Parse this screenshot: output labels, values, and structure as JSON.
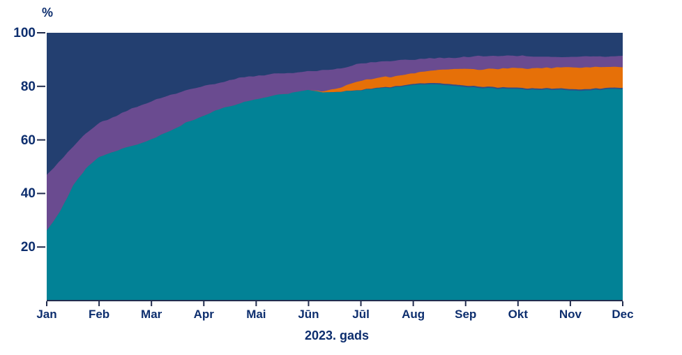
{
  "axes": {
    "y_unit": "%",
    "x_title": "2023. gads",
    "y_ticks": [
      20,
      40,
      60,
      80,
      100
    ],
    "x_ticks": [
      "Jan",
      "Feb",
      "Mar",
      "Apr",
      "Mai",
      "Jūn",
      "Jūl",
      "Aug",
      "Sep",
      "Okt",
      "Nov",
      "Dec"
    ],
    "y_min": 0,
    "y_max": 100
  },
  "colors": {
    "background": "#FFFFFF",
    "navy_area": "#233F70",
    "purple_area": "#6A4B90",
    "orange_area": "#E67008",
    "dark_blue_thin_area": "#2F4E86",
    "teal_area": "#028296",
    "axis_line": "#232D4E",
    "label_text": "#0D2E6E"
  },
  "chart_data": {
    "type": "area",
    "stacked": true,
    "unit": "%",
    "title": "",
    "xlabel": "2023. gads",
    "ylabel": "%",
    "ylim": [
      0,
      100
    ],
    "legend_position": "none",
    "grid": false,
    "categories": [
      "Jan",
      "Feb",
      "Mar",
      "Apr",
      "Mai",
      "Jūn",
      "Jūl",
      "Aug",
      "Sep",
      "Okt",
      "Nov",
      "Dec"
    ],
    "series": [
      {
        "name": "series_teal_bottom",
        "color": "#028296",
        "values": [
          26,
          53.5,
          60,
          69,
          75,
          78.5,
          78.5,
          80.5,
          79.8,
          79,
          78.5,
          79
        ]
      },
      {
        "name": "series_dark_blue_thin",
        "color": "#2F4E86",
        "values": [
          0,
          0,
          0,
          0,
          0,
          0,
          0.15,
          0.4,
          0.5,
          0.5,
          0.5,
          0.5
        ]
      },
      {
        "name": "series_orange",
        "color": "#E67008",
        "values": [
          0,
          0,
          0,
          0,
          0,
          0,
          3.5,
          4.1,
          6.2,
          7.3,
          8.2,
          7.8
        ]
      },
      {
        "name": "series_purple",
        "color": "#6A4B90",
        "values": [
          21,
          13,
          14.5,
          11,
          9,
          7,
          6.35,
          5,
          4.5,
          4.6,
          3.8,
          3.9
        ]
      },
      {
        "name": "series_navy_top",
        "color": "#233F70",
        "values": [
          53,
          33.5,
          25.5,
          20,
          16,
          14.5,
          11.5,
          10,
          9,
          8.6,
          9,
          8.8
        ]
      }
    ],
    "dense_boundaries": {
      "comment": "cumulative stack boundaries (% of total) sampled across the year; t in months, 0 = Jan tick, 11 = Dec tick",
      "t_months": [
        0,
        0.25,
        0.5,
        0.75,
        1,
        1.33,
        1.67,
        2,
        2.33,
        2.67,
        3,
        3.33,
        3.67,
        4,
        4.33,
        4.67,
        5,
        5.25,
        5.5,
        5.75,
        6,
        6.5,
        7,
        7.5,
        8,
        8.5,
        9,
        9.5,
        10,
        10.5,
        11
      ],
      "teal_top": [
        26,
        33,
        43,
        49.5,
        53.5,
        56,
        58,
        60,
        63,
        66.5,
        69,
        71.5,
        73.5,
        75,
        76.5,
        77.5,
        78.5,
        77.8,
        78,
        78.3,
        78.5,
        79.3,
        80.5,
        80.8,
        79.8,
        79.3,
        79,
        78.8,
        78.5,
        78.7,
        79
      ],
      "dark_blue_width": [
        0,
        0,
        0,
        0,
        0,
        0,
        0,
        0,
        0,
        0,
        0,
        0,
        0,
        0,
        0,
        0,
        0,
        0,
        0.05,
        0.1,
        0.15,
        0.3,
        0.4,
        0.5,
        0.5,
        0.5,
        0.5,
        0.5,
        0.5,
        0.5,
        0.5
      ],
      "orange_width": [
        0,
        0,
        0,
        0,
        0,
        0,
        0,
        0,
        0,
        0,
        0,
        0,
        0,
        0,
        0,
        0,
        0,
        0.3,
        1.1,
        2.3,
        3.5,
        3.8,
        4.1,
        5.2,
        6.2,
        6.7,
        7.3,
        7.7,
        8.2,
        8.1,
        7.8
      ],
      "purple_top": [
        47,
        52,
        57.5,
        62.5,
        66.5,
        69,
        72,
        74.5,
        76.5,
        78.5,
        80,
        81.5,
        83,
        84,
        84.5,
        85,
        85.5,
        85.8,
        86.2,
        87.3,
        88.5,
        89.3,
        90,
        90.5,
        91,
        91.3,
        91.4,
        91.2,
        91,
        91.1,
        91.2
      ],
      "navy_top": 100
    }
  }
}
